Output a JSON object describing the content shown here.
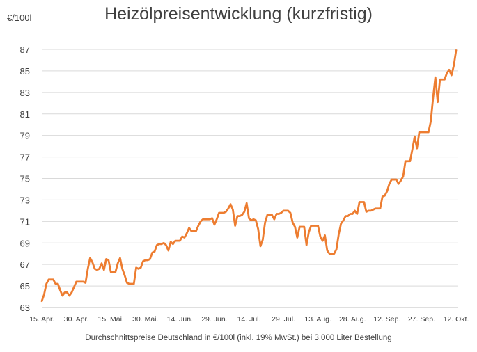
{
  "chart_data": {
    "type": "line",
    "title": "Heizölpreisentwicklung (kurzfristig)",
    "ylabel": "€/100l",
    "xlabel": "Durchschnittspreise Deutschland in €/100l (inkl. 19% MwSt.) bei 3.000 Liter Bestellung",
    "ylim": [
      63,
      87
    ],
    "yticks": [
      "63",
      "65",
      "67",
      "69",
      "71",
      "73",
      "75",
      "77",
      "79",
      "81",
      "83",
      "85",
      "87"
    ],
    "xlim": [
      0,
      180
    ],
    "x_tick_positions": [
      0,
      15,
      30,
      45,
      60,
      75,
      90,
      105,
      120,
      135,
      150,
      165,
      180
    ],
    "x_tick_labels": [
      "15. Apr.",
      "30. Apr.",
      "15. Mai.",
      "30. Mai.",
      "14. Jun.",
      "29. Jun.",
      "14. Jul.",
      "29. Jul.",
      "13. Aug.",
      "28. Aug.",
      "12. Sep.",
      "27. Sep.",
      "12. Okt."
    ],
    "grid": true,
    "line_color": "#ED7D31",
    "series": [
      {
        "x": [
          0,
          1,
          2,
          3,
          4,
          5,
          6,
          7,
          8,
          9,
          10,
          11,
          12,
          13,
          14,
          15,
          16,
          17,
          18,
          19,
          20,
          21,
          22,
          23,
          24,
          25,
          26,
          27,
          28,
          29,
          30,
          31,
          32,
          33,
          34,
          35,
          36,
          37,
          38,
          39,
          40,
          41,
          42,
          43,
          44,
          45,
          46,
          47,
          48,
          49,
          50,
          51,
          52,
          53,
          54,
          55,
          56,
          57,
          58,
          59,
          60,
          61,
          62,
          63,
          64,
          65,
          66,
          67,
          68,
          69,
          70,
          71,
          72,
          73,
          74,
          75,
          76,
          77,
          78,
          79,
          80,
          81,
          82,
          83,
          84,
          85,
          86,
          87,
          88,
          89,
          90,
          91,
          92,
          93,
          94,
          95,
          96,
          97,
          98,
          99,
          100,
          101,
          102,
          103,
          104,
          105,
          106,
          107,
          108,
          109,
          110,
          111,
          112,
          113,
          114,
          115,
          116,
          117,
          118,
          119,
          120,
          121,
          122,
          123,
          124,
          125,
          126,
          127,
          128,
          129,
          130,
          131,
          132,
          133,
          134,
          135,
          136,
          137,
          138,
          139,
          140,
          141,
          142,
          143,
          144,
          145,
          146,
          147,
          148,
          149,
          150,
          151,
          152,
          153,
          154,
          155,
          156,
          157,
          158,
          159,
          160,
          161,
          162,
          163,
          164,
          165,
          166,
          167,
          168,
          169,
          170,
          171,
          172,
          173,
          174,
          175,
          176,
          177,
          178,
          179,
          180
        ],
        "y": [
          63.6,
          64.2,
          65.2,
          65.6,
          65.6,
          65.6,
          65.2,
          65.2,
          64.6,
          64.1,
          64.4,
          64.4,
          64.1,
          64.4,
          64.9,
          65.4,
          65.4,
          65.4,
          65.4,
          65.3,
          66.6,
          67.6,
          67.2,
          66.6,
          66.5,
          66.6,
          67.1,
          66.5,
          67.5,
          67.4,
          66.3,
          66.3,
          66.3,
          67.1,
          67.6,
          66.6,
          66.0,
          65.3,
          65.2,
          65.2,
          65.2,
          66.7,
          66.6,
          66.7,
          67.3,
          67.4,
          67.4,
          67.5,
          68.1,
          68.2,
          68.8,
          68.9,
          68.9,
          69.0,
          68.8,
          68.3,
          69.1,
          68.9,
          69.2,
          69.2,
          69.2,
          69.6,
          69.5,
          69.9,
          70.4,
          70.1,
          70.1,
          70.1,
          70.6,
          71.0,
          71.2,
          71.2,
          71.2,
          71.2,
          71.3,
          70.7,
          71.2,
          71.8,
          71.8,
          71.8,
          71.9,
          72.2,
          72.6,
          72.1,
          70.6,
          71.5,
          71.5,
          71.6,
          71.9,
          72.7,
          71.3,
          71.1,
          71.2,
          71.1,
          70.3,
          68.7,
          69.3,
          70.9,
          71.6,
          71.6,
          71.6,
          71.2,
          71.7,
          71.7,
          71.8,
          72.0,
          72.0,
          72.0,
          71.8,
          70.9,
          70.5,
          69.5,
          70.5,
          70.5,
          70.5,
          68.8,
          70.0,
          70.6,
          70.6,
          70.6,
          70.6,
          69.6,
          69.2,
          69.7,
          68.3,
          68.0,
          68.0,
          68.0,
          68.4,
          69.8,
          70.8,
          71.1,
          71.5,
          71.5,
          71.7,
          71.7,
          72.0,
          71.7,
          72.8,
          72.8,
          72.8,
          71.9,
          72.0,
          72.0,
          72.1,
          72.2,
          72.2,
          72.2,
          73.3,
          73.4,
          73.8,
          74.5,
          74.9,
          74.9,
          74.9,
          74.5,
          74.8,
          75.2,
          76.6,
          76.6,
          76.6,
          77.7,
          78.9,
          77.8,
          79.3,
          79.3,
          79.3,
          79.3,
          79.3,
          80.3,
          82.5,
          84.4,
          82.1,
          84.2,
          84.2,
          84.2,
          84.8,
          85.1,
          84.6,
          85.5,
          86.9
        ]
      }
    ]
  }
}
